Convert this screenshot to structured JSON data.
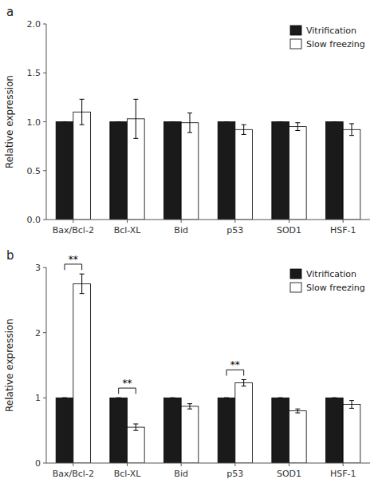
{
  "chart_data": [
    {
      "type": "bar",
      "title": "a",
      "categories": [
        "Bax/Bcl-2",
        "Bcl-XL",
        "Bid",
        "p53",
        "SOD1",
        "HSF-1"
      ],
      "series": [
        {
          "name": "Vitrification",
          "color": "#1a1a1a",
          "values": [
            1.0,
            1.0,
            1.0,
            1.0,
            1.0,
            1.0
          ],
          "errors": [
            0.0,
            0.0,
            0.0,
            0.0,
            0.0,
            0.0
          ]
        },
        {
          "name": "Slow freezing",
          "color": "#ffffff",
          "values": [
            1.1,
            1.03,
            0.99,
            0.92,
            0.95,
            0.92
          ],
          "errors": [
            0.13,
            0.2,
            0.1,
            0.05,
            0.04,
            0.06
          ]
        }
      ],
      "ylim": [
        0.0,
        2.0
      ],
      "yticks": [
        {
          "value": 0.0,
          "label": "0.0"
        },
        0.5,
        {
          "value": 1.0,
          "label": "1.0"
        },
        1.5,
        {
          "value": 2.0,
          "label": "2.0"
        }
      ],
      "ylabel": "Relative expression",
      "legend": "upper right",
      "grid": false
    },
    {
      "type": "bar",
      "title": "b",
      "categories": [
        "Bax/Bcl-2",
        "Bcl-XL",
        "Bid",
        "p53",
        "SOD1",
        "HSF-1"
      ],
      "series": [
        {
          "name": "Vitrification",
          "color": "#1a1a1a",
          "values": [
            1.0,
            1.0,
            1.0,
            1.0,
            1.0,
            1.0
          ],
          "errors": [
            0.0,
            0.0,
            0.0,
            0.0,
            0.0,
            0.0
          ]
        },
        {
          "name": "Slow freezing",
          "color": "#ffffff",
          "values": [
            2.75,
            0.55,
            0.87,
            1.23,
            0.8,
            0.9
          ],
          "errors": [
            0.15,
            0.05,
            0.04,
            0.05,
            0.03,
            0.06
          ]
        }
      ],
      "ylim": [
        0.0,
        3.0
      ],
      "yticks": [
        0,
        1,
        2,
        3
      ],
      "ylabel": "Relative expression",
      "legend": "upper right",
      "grid": false,
      "annotations": [
        {
          "category": "Bax/Bcl-2",
          "label": "**"
        },
        {
          "category": "Bcl-XL",
          "label": "**"
        },
        {
          "category": "p53",
          "label": "**"
        }
      ]
    }
  ]
}
